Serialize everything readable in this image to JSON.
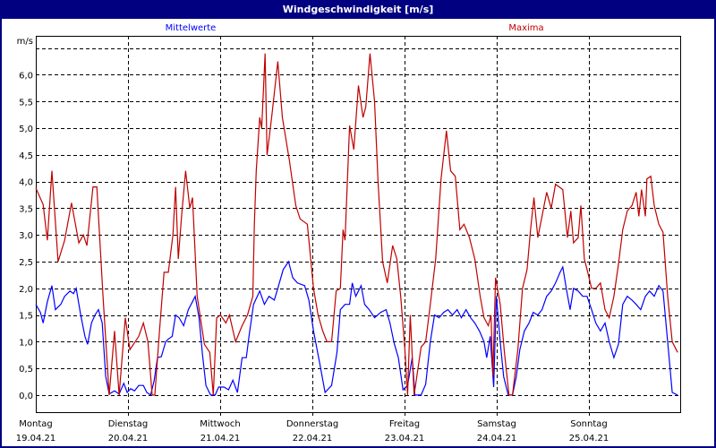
{
  "window": {
    "title": "Windgeschwindigkeit [m/s]"
  },
  "chart_data": {
    "type": "line",
    "title": "Windgeschwindigkeit [m/s]",
    "ylabel": "m/s",
    "xunit": "hours since start of first day shown",
    "ylim": [
      -0.32,
      6.73
    ],
    "xlim": [
      0,
      168
    ],
    "grid": true,
    "yticks": [
      0,
      0.5,
      1,
      1.5,
      2,
      2.5,
      3,
      3.5,
      4,
      4.5,
      5,
      5.5,
      6
    ],
    "ytick_labels": [
      "0,0",
      "0,5",
      "1,0",
      "1,5",
      "2,0",
      "2,5",
      "3,0",
      "3,5",
      "4,0",
      "4,5",
      "5,0",
      "5,5",
      "6,0"
    ],
    "extra_gridlines": [
      6.5
    ],
    "days": [
      {
        "weekday": "Montag",
        "date": "19.04.21"
      },
      {
        "weekday": "Dienstag",
        "date": "20.04.21"
      },
      {
        "weekday": "Mittwoch",
        "date": "21.04.21"
      },
      {
        "weekday": "Donnerstag",
        "date": "22.04.21"
      },
      {
        "weekday": "Freitag",
        "date": "23.04.21"
      },
      {
        "weekday": "Samstag",
        "date": "24.04.21"
      },
      {
        "weekday": "Sonntag",
        "date": "25.04.21"
      }
    ],
    "series": [
      {
        "name": "Mittelwerte",
        "color": "#0000ff",
        "points": [
          [
            0,
            1.7
          ],
          [
            1.2,
            1.55
          ],
          [
            1.9,
            1.35
          ],
          [
            3,
            1.75
          ],
          [
            4.2,
            2.05
          ],
          [
            5.1,
            1.6
          ],
          [
            6.5,
            1.7
          ],
          [
            7.5,
            1.85
          ],
          [
            8.9,
            1.95
          ],
          [
            9.8,
            1.9
          ],
          [
            10.5,
            2
          ],
          [
            11.7,
            1.5
          ],
          [
            12.8,
            1.1
          ],
          [
            13.5,
            0.95
          ],
          [
            14.5,
            1.35
          ],
          [
            15.4,
            1.5
          ],
          [
            16.3,
            1.6
          ],
          [
            17.3,
            1.35
          ],
          [
            18.2,
            0.35
          ],
          [
            19.1,
            0.02
          ],
          [
            20.5,
            0.08
          ],
          [
            21.7,
            0.02
          ],
          [
            22.9,
            0.22
          ],
          [
            23.8,
            0.05
          ],
          [
            24.7,
            0.12
          ],
          [
            25.7,
            0.08
          ],
          [
            26.8,
            0.18
          ],
          [
            28,
            0.18
          ],
          [
            28.9,
            0.05
          ],
          [
            29.9,
            0
          ],
          [
            30.8,
            0.27
          ],
          [
            31.7,
            0.7
          ],
          [
            32.7,
            0.72
          ],
          [
            33.8,
            1
          ],
          [
            34.5,
            1.05
          ],
          [
            35.5,
            1.1
          ],
          [
            36.4,
            1.5
          ],
          [
            37.3,
            1.45
          ],
          [
            38.5,
            1.3
          ],
          [
            39.7,
            1.6
          ],
          [
            40.8,
            1.75
          ],
          [
            41.5,
            1.85
          ],
          [
            42.5,
            1.45
          ],
          [
            43.4,
            0.75
          ],
          [
            44.3,
            0.18
          ],
          [
            45.5,
            0
          ],
          [
            46.7,
            0
          ],
          [
            47.6,
            0.15
          ],
          [
            49,
            0.15
          ],
          [
            50.2,
            0.1
          ],
          [
            51.3,
            0.28
          ],
          [
            52.5,
            0.05
          ],
          [
            53.7,
            0.7
          ],
          [
            54.8,
            0.7
          ],
          [
            55.5,
            1.1
          ],
          [
            56.7,
            1.7
          ],
          [
            58.3,
            1.95
          ],
          [
            59.5,
            1.7
          ],
          [
            60.7,
            1.85
          ],
          [
            62.1,
            1.78
          ],
          [
            63,
            2
          ],
          [
            64.4,
            2.35
          ],
          [
            65.8,
            2.5
          ],
          [
            66.9,
            2.2
          ],
          [
            68.1,
            2.1
          ],
          [
            70,
            2.05
          ],
          [
            71.1,
            1.78
          ],
          [
            72.3,
            1.2
          ],
          [
            73.9,
            0.6
          ],
          [
            75.3,
            0.05
          ],
          [
            77,
            0.18
          ],
          [
            78.4,
            0.8
          ],
          [
            79.3,
            1.6
          ],
          [
            80.5,
            1.7
          ],
          [
            81.7,
            1.7
          ],
          [
            82.4,
            2.1
          ],
          [
            83.3,
            1.85
          ],
          [
            84.7,
            2.05
          ],
          [
            85.6,
            1.7
          ],
          [
            86.8,
            1.6
          ],
          [
            88.2,
            1.45
          ],
          [
            89.8,
            1.55
          ],
          [
            91.2,
            1.6
          ],
          [
            92.2,
            1.35
          ],
          [
            93.3,
            0.97
          ],
          [
            94.4,
            0.7
          ],
          [
            95.6,
            0.1
          ],
          [
            96.8,
            0.18
          ],
          [
            98,
            0.7
          ],
          [
            98.7,
            0
          ],
          [
            100.3,
            0
          ],
          [
            101.5,
            0.2
          ],
          [
            102.7,
            1
          ],
          [
            103.8,
            1.5
          ],
          [
            105,
            1.45
          ],
          [
            106.2,
            1.55
          ],
          [
            107.3,
            1.6
          ],
          [
            108.5,
            1.5
          ],
          [
            109.7,
            1.6
          ],
          [
            110.8,
            1.45
          ],
          [
            112,
            1.6
          ],
          [
            113.2,
            1.45
          ],
          [
            114.3,
            1.35
          ],
          [
            115.5,
            1.2
          ],
          [
            116.7,
            1
          ],
          [
            117.4,
            0.7
          ],
          [
            118.3,
            1.1
          ],
          [
            119.2,
            0.15
          ],
          [
            119.9,
            1.85
          ],
          [
            120.9,
            1
          ],
          [
            121.8,
            0.35
          ],
          [
            123,
            0
          ],
          [
            124.1,
            0
          ],
          [
            125.1,
            0.35
          ],
          [
            126,
            0.85
          ],
          [
            127.2,
            1.2
          ],
          [
            128.4,
            1.35
          ],
          [
            129.5,
            1.55
          ],
          [
            130.7,
            1.5
          ],
          [
            131.8,
            1.6
          ],
          [
            133,
            1.85
          ],
          [
            134.2,
            1.95
          ],
          [
            135.3,
            2.1
          ],
          [
            136.5,
            2.3
          ],
          [
            137.2,
            2.4
          ],
          [
            138.1,
            2
          ],
          [
            139.1,
            1.6
          ],
          [
            140,
            2
          ],
          [
            141.2,
            1.95
          ],
          [
            142.4,
            1.85
          ],
          [
            143.5,
            1.85
          ],
          [
            144.7,
            1.6
          ],
          [
            145.8,
            1.35
          ],
          [
            147,
            1.2
          ],
          [
            148.2,
            1.35
          ],
          [
            149.3,
            1
          ],
          [
            150.5,
            0.7
          ],
          [
            151.7,
            0.95
          ],
          [
            152.8,
            1.7
          ],
          [
            154,
            1.85
          ],
          [
            155.2,
            1.78
          ],
          [
            156.3,
            1.7
          ],
          [
            157.5,
            1.6
          ],
          [
            158.7,
            1.85
          ],
          [
            159.8,
            1.95
          ],
          [
            161,
            1.85
          ],
          [
            162.2,
            2.05
          ],
          [
            163.3,
            1.95
          ],
          [
            164.5,
            1
          ],
          [
            165.7,
            0.05
          ],
          [
            167.1,
            0
          ]
        ]
      },
      {
        "name": "Maxima",
        "color": "#c00000",
        "points": [
          [
            0,
            3.88
          ],
          [
            1.9,
            3.57
          ],
          [
            3,
            2.9
          ],
          [
            4.2,
            4.2
          ],
          [
            5.8,
            2.5
          ],
          [
            7.5,
            2.9
          ],
          [
            9.3,
            3.6
          ],
          [
            11.2,
            2.85
          ],
          [
            12.4,
            3
          ],
          [
            13.3,
            2.8
          ],
          [
            14.9,
            3.9
          ],
          [
            15.9,
            3.9
          ],
          [
            17.5,
            1.85
          ],
          [
            19.1,
            0
          ],
          [
            20.5,
            1.2
          ],
          [
            21.7,
            0
          ],
          [
            23.3,
            1.45
          ],
          [
            24.5,
            0.85
          ],
          [
            26.8,
            1.1
          ],
          [
            28,
            1.35
          ],
          [
            29.2,
            1
          ],
          [
            30.3,
            0
          ],
          [
            31,
            0
          ],
          [
            32.2,
            1.2
          ],
          [
            33.4,
            2.3
          ],
          [
            34.5,
            2.3
          ],
          [
            35.7,
            3
          ],
          [
            36.4,
            3.9
          ],
          [
            37.1,
            2.55
          ],
          [
            38,
            3.4
          ],
          [
            39,
            4.2
          ],
          [
            40.1,
            3.5
          ],
          [
            40.8,
            3.7
          ],
          [
            42,
            1.85
          ],
          [
            43.9,
            0.95
          ],
          [
            45.3,
            0.8
          ],
          [
            46.2,
            0
          ],
          [
            47.1,
            1.45
          ],
          [
            48.1,
            1.5
          ],
          [
            49.5,
            1.35
          ],
          [
            50.4,
            1.5
          ],
          [
            52,
            1
          ],
          [
            53.7,
            1.3
          ],
          [
            55.1,
            1.5
          ],
          [
            56.5,
            1.85
          ],
          [
            56.9,
            3.2
          ],
          [
            57.4,
            4.2
          ],
          [
            58.3,
            5.2
          ],
          [
            58.8,
            5
          ],
          [
            59.7,
            6.4
          ],
          [
            60.2,
            4.5
          ],
          [
            61.4,
            5.2
          ],
          [
            63,
            6.25
          ],
          [
            64.2,
            5.2
          ],
          [
            66,
            4.4
          ],
          [
            67.7,
            3.55
          ],
          [
            68.8,
            3.3
          ],
          [
            70.7,
            3.2
          ],
          [
            72.3,
            2
          ],
          [
            73.5,
            1.5
          ],
          [
            74.7,
            1.2
          ],
          [
            75.8,
            1
          ],
          [
            77,
            1
          ],
          [
            78.2,
            1.95
          ],
          [
            79.3,
            2
          ],
          [
            80,
            3.1
          ],
          [
            80.5,
            2.9
          ],
          [
            81.7,
            5.05
          ],
          [
            82.8,
            4.6
          ],
          [
            84,
            5.8
          ],
          [
            85.2,
            5.2
          ],
          [
            85.9,
            5.4
          ],
          [
            87,
            6.4
          ],
          [
            88.2,
            5.5
          ],
          [
            89.1,
            4
          ],
          [
            90.3,
            2.5
          ],
          [
            91.5,
            2.1
          ],
          [
            92.9,
            2.8
          ],
          [
            94,
            2.55
          ],
          [
            95,
            1.85
          ],
          [
            96.1,
            0.85
          ],
          [
            96.8,
            0
          ],
          [
            97.5,
            1.5
          ],
          [
            98.5,
            0
          ],
          [
            100.3,
            0.9
          ],
          [
            101.5,
            1
          ],
          [
            102.7,
            1.7
          ],
          [
            104.1,
            2.55
          ],
          [
            105.5,
            4.05
          ],
          [
            106.9,
            4.95
          ],
          [
            108,
            4.2
          ],
          [
            109.2,
            4.1
          ],
          [
            110.4,
            3.1
          ],
          [
            111.5,
            3.2
          ],
          [
            112.9,
            2.95
          ],
          [
            114.3,
            2.55
          ],
          [
            115.7,
            1.85
          ],
          [
            116.7,
            1.45
          ],
          [
            117.8,
            1.3
          ],
          [
            118.5,
            1.5
          ],
          [
            119,
            0.35
          ],
          [
            119.7,
            2.2
          ],
          [
            120.9,
            1.7
          ],
          [
            122,
            0.8
          ],
          [
            123.2,
            0
          ],
          [
            124.1,
            0
          ],
          [
            125.5,
            0.85
          ],
          [
            126.7,
            2
          ],
          [
            127.9,
            2.35
          ],
          [
            128.8,
            3.1
          ],
          [
            129.7,
            3.7
          ],
          [
            130.7,
            2.95
          ],
          [
            131.8,
            3.35
          ],
          [
            133,
            3.8
          ],
          [
            134.2,
            3.5
          ],
          [
            135.3,
            3.95
          ],
          [
            137.2,
            3.85
          ],
          [
            138.4,
            2.95
          ],
          [
            139.3,
            3.45
          ],
          [
            140,
            2.85
          ],
          [
            141.2,
            2.95
          ],
          [
            141.9,
            3.55
          ],
          [
            142.8,
            2.55
          ],
          [
            143.7,
            2.3
          ],
          [
            144.7,
            2
          ],
          [
            145.8,
            2
          ],
          [
            147,
            2.1
          ],
          [
            148.2,
            1.6
          ],
          [
            149.3,
            1.45
          ],
          [
            150.5,
            1.85
          ],
          [
            151.7,
            2.45
          ],
          [
            152.8,
            3.1
          ],
          [
            154,
            3.45
          ],
          [
            155.2,
            3.55
          ],
          [
            156.3,
            3.8
          ],
          [
            157,
            3.35
          ],
          [
            157.7,
            3.85
          ],
          [
            158.7,
            3.35
          ],
          [
            159.1,
            4.05
          ],
          [
            160.1,
            4.1
          ],
          [
            161,
            3.55
          ],
          [
            162.2,
            3.2
          ],
          [
            163.3,
            3.05
          ],
          [
            164.5,
            1.85
          ],
          [
            165.7,
            1
          ],
          [
            167.1,
            0.8
          ]
        ]
      }
    ],
    "legend": "top"
  }
}
